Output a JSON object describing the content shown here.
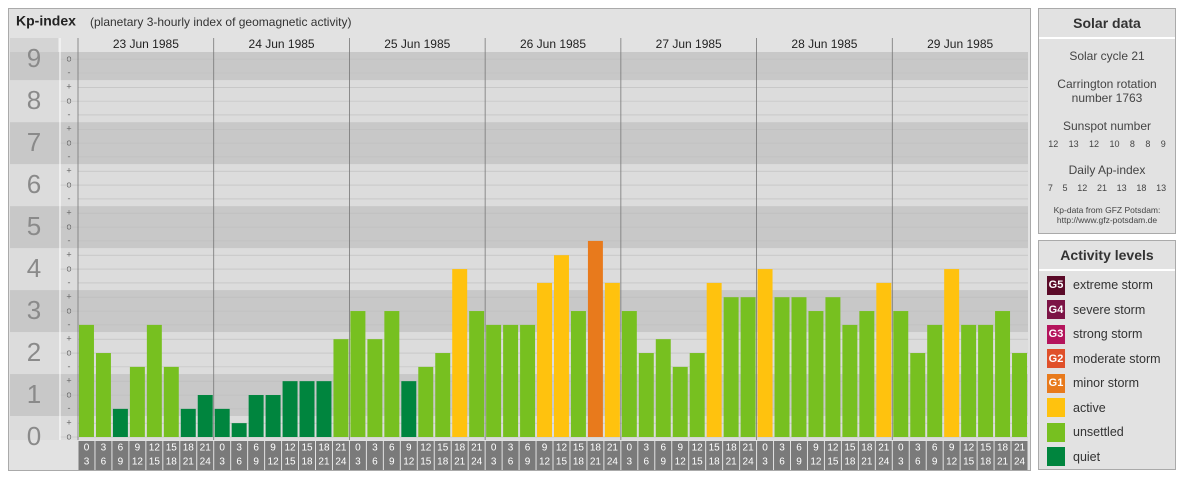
{
  "chart_data": {
    "type": "bar",
    "title": "Kp-index",
    "subtitle": "(planetary 3-hourly index of geomagnetic activity)",
    "groups": [
      "23 Jun 1985",
      "24 Jun 1985",
      "25 Jun 1985",
      "26 Jun 1985",
      "27 Jun 1985",
      "28 Jun 1985",
      "29 Jun 1985"
    ],
    "categories": [
      [
        "0",
        "3"
      ],
      [
        "3",
        "6"
      ],
      [
        "6",
        "9"
      ],
      [
        "9",
        "12"
      ],
      [
        "12",
        "15"
      ],
      [
        "15",
        "18"
      ],
      [
        "18",
        "21"
      ],
      [
        "21",
        "24"
      ],
      [
        "0",
        "3"
      ],
      [
        "3",
        "6"
      ],
      [
        "6",
        "9"
      ],
      [
        "9",
        "12"
      ],
      [
        "12",
        "15"
      ],
      [
        "15",
        "18"
      ],
      [
        "18",
        "21"
      ],
      [
        "21",
        "24"
      ],
      [
        "0",
        "3"
      ],
      [
        "3",
        "6"
      ],
      [
        "6",
        "9"
      ],
      [
        "9",
        "12"
      ],
      [
        "12",
        "15"
      ],
      [
        "15",
        "18"
      ],
      [
        "18",
        "21"
      ],
      [
        "21",
        "24"
      ],
      [
        "0",
        "3"
      ],
      [
        "3",
        "6"
      ],
      [
        "6",
        "9"
      ],
      [
        "9",
        "12"
      ],
      [
        "12",
        "15"
      ],
      [
        "15",
        "18"
      ],
      [
        "18",
        "21"
      ],
      [
        "21",
        "24"
      ],
      [
        "0",
        "3"
      ],
      [
        "3",
        "6"
      ],
      [
        "6",
        "9"
      ],
      [
        "9",
        "12"
      ],
      [
        "12",
        "15"
      ],
      [
        "15",
        "18"
      ],
      [
        "18",
        "21"
      ],
      [
        "21",
        "24"
      ],
      [
        "0",
        "3"
      ],
      [
        "3",
        "6"
      ],
      [
        "6",
        "9"
      ],
      [
        "9",
        "12"
      ],
      [
        "12",
        "15"
      ],
      [
        "15",
        "18"
      ],
      [
        "18",
        "21"
      ],
      [
        "21",
        "24"
      ],
      [
        "0",
        "3"
      ],
      [
        "3",
        "6"
      ],
      [
        "6",
        "9"
      ],
      [
        "9",
        "12"
      ],
      [
        "12",
        "15"
      ],
      [
        "15",
        "18"
      ],
      [
        "18",
        "21"
      ],
      [
        "21",
        "24"
      ]
    ],
    "values": [
      2.67,
      2,
      0.67,
      1.67,
      2.67,
      1.67,
      0.67,
      1,
      0.67,
      0.33,
      1,
      1,
      1.33,
      1.33,
      1.33,
      2.33,
      3,
      2.33,
      3,
      1.33,
      1.67,
      2,
      4,
      3,
      2.67,
      2.67,
      2.67,
      3.67,
      4.33,
      3,
      4.67,
      3.67,
      3,
      2,
      2.33,
      1.67,
      2,
      3.67,
      3.33,
      3.33,
      4,
      3.33,
      3.33,
      3,
      3.33,
      2.67,
      3,
      3.67,
      3,
      2,
      2.67,
      4,
      2.67,
      2.67,
      3,
      2
    ],
    "colors": [
      "#77c020",
      "#77c020",
      "#00853e",
      "#77c020",
      "#77c020",
      "#77c020",
      "#00853e",
      "#00853e",
      "#00853e",
      "#00853e",
      "#00853e",
      "#00853e",
      "#00853e",
      "#00853e",
      "#00853e",
      "#77c020",
      "#77c020",
      "#77c020",
      "#77c020",
      "#00853e",
      "#77c020",
      "#77c020",
      "#ffc20e",
      "#77c020",
      "#77c020",
      "#77c020",
      "#77c020",
      "#ffc20e",
      "#ffc20e",
      "#77c020",
      "#e87a1c",
      "#ffc20e",
      "#77c020",
      "#77c020",
      "#77c020",
      "#77c020",
      "#77c020",
      "#ffc20e",
      "#77c020",
      "#77c020",
      "#ffc20e",
      "#77c020",
      "#77c020",
      "#77c020",
      "#77c020",
      "#77c020",
      "#77c020",
      "#ffc20e",
      "#77c020",
      "#77c020",
      "#77c020",
      "#ffc20e",
      "#77c020",
      "#77c020",
      "#77c020",
      "#77c020"
    ],
    "ylim": [
      0,
      9.17
    ],
    "yticks": [
      0,
      1,
      2,
      3,
      4,
      5,
      6,
      7,
      8,
      9
    ],
    "minor_ticks": [
      {
        "value": 0,
        "label": "o"
      },
      {
        "value": 0.33,
        "label": "+"
      },
      {
        "value": 0.67,
        "label": "-"
      },
      {
        "value": 1,
        "label": "o"
      },
      {
        "value": 1.33,
        "label": "+"
      },
      {
        "value": 1.67,
        "label": "-"
      },
      {
        "value": 2,
        "label": "o"
      },
      {
        "value": 2.33,
        "label": "+"
      },
      {
        "value": 2.67,
        "label": "-"
      },
      {
        "value": 3,
        "label": "o"
      },
      {
        "value": 3.33,
        "label": "+"
      },
      {
        "value": 3.67,
        "label": "-"
      },
      {
        "value": 4,
        "label": "o"
      },
      {
        "value": 4.33,
        "label": "+"
      },
      {
        "value": 4.67,
        "label": "-"
      },
      {
        "value": 5,
        "label": "o"
      },
      {
        "value": 5.33,
        "label": "+"
      },
      {
        "value": 5.67,
        "label": "-"
      },
      {
        "value": 6,
        "label": "o"
      },
      {
        "value": 6.33,
        "label": "+"
      },
      {
        "value": 6.67,
        "label": "-"
      },
      {
        "value": 7,
        "label": "o"
      },
      {
        "value": 7.33,
        "label": "+"
      },
      {
        "value": 7.67,
        "label": "-"
      },
      {
        "value": 8,
        "label": "o"
      },
      {
        "value": 8.33,
        "label": "+"
      },
      {
        "value": 8.67,
        "label": "-"
      },
      {
        "value": 9,
        "label": "o"
      }
    ],
    "grid": true
  },
  "solar_data": {
    "title": "Solar data",
    "cycle": "Solar cycle 21",
    "carrington": "Carrington rotation number 1763",
    "sunspot_label": "Sunspot number",
    "sunspot": [
      12,
      13,
      12,
      10,
      8,
      8,
      9
    ],
    "ap_label": "Daily Ap-index",
    "ap": [
      7,
      5,
      12,
      21,
      13,
      18,
      13
    ],
    "source": "Kp-data from GFZ Potsdam:",
    "source_url": "http://www.gfz-potsdam.de"
  },
  "legend": {
    "title": "Activity levels",
    "items": [
      {
        "badge": "G5",
        "label": "extreme storm",
        "color": "#5a0a28"
      },
      {
        "badge": "G4",
        "label": "severe storm",
        "color": "#7c1446"
      },
      {
        "badge": "G3",
        "label": "strong storm",
        "color": "#b4145c"
      },
      {
        "badge": "G2",
        "label": "moderate storm",
        "color": "#e0502a"
      },
      {
        "badge": "G1",
        "label": "minor storm",
        "color": "#e87a1c"
      },
      {
        "label": "active",
        "color": "#ffc20e"
      },
      {
        "label": "unsettled",
        "color": "#77c020"
      },
      {
        "label": "quiet",
        "color": "#00853e"
      }
    ]
  }
}
